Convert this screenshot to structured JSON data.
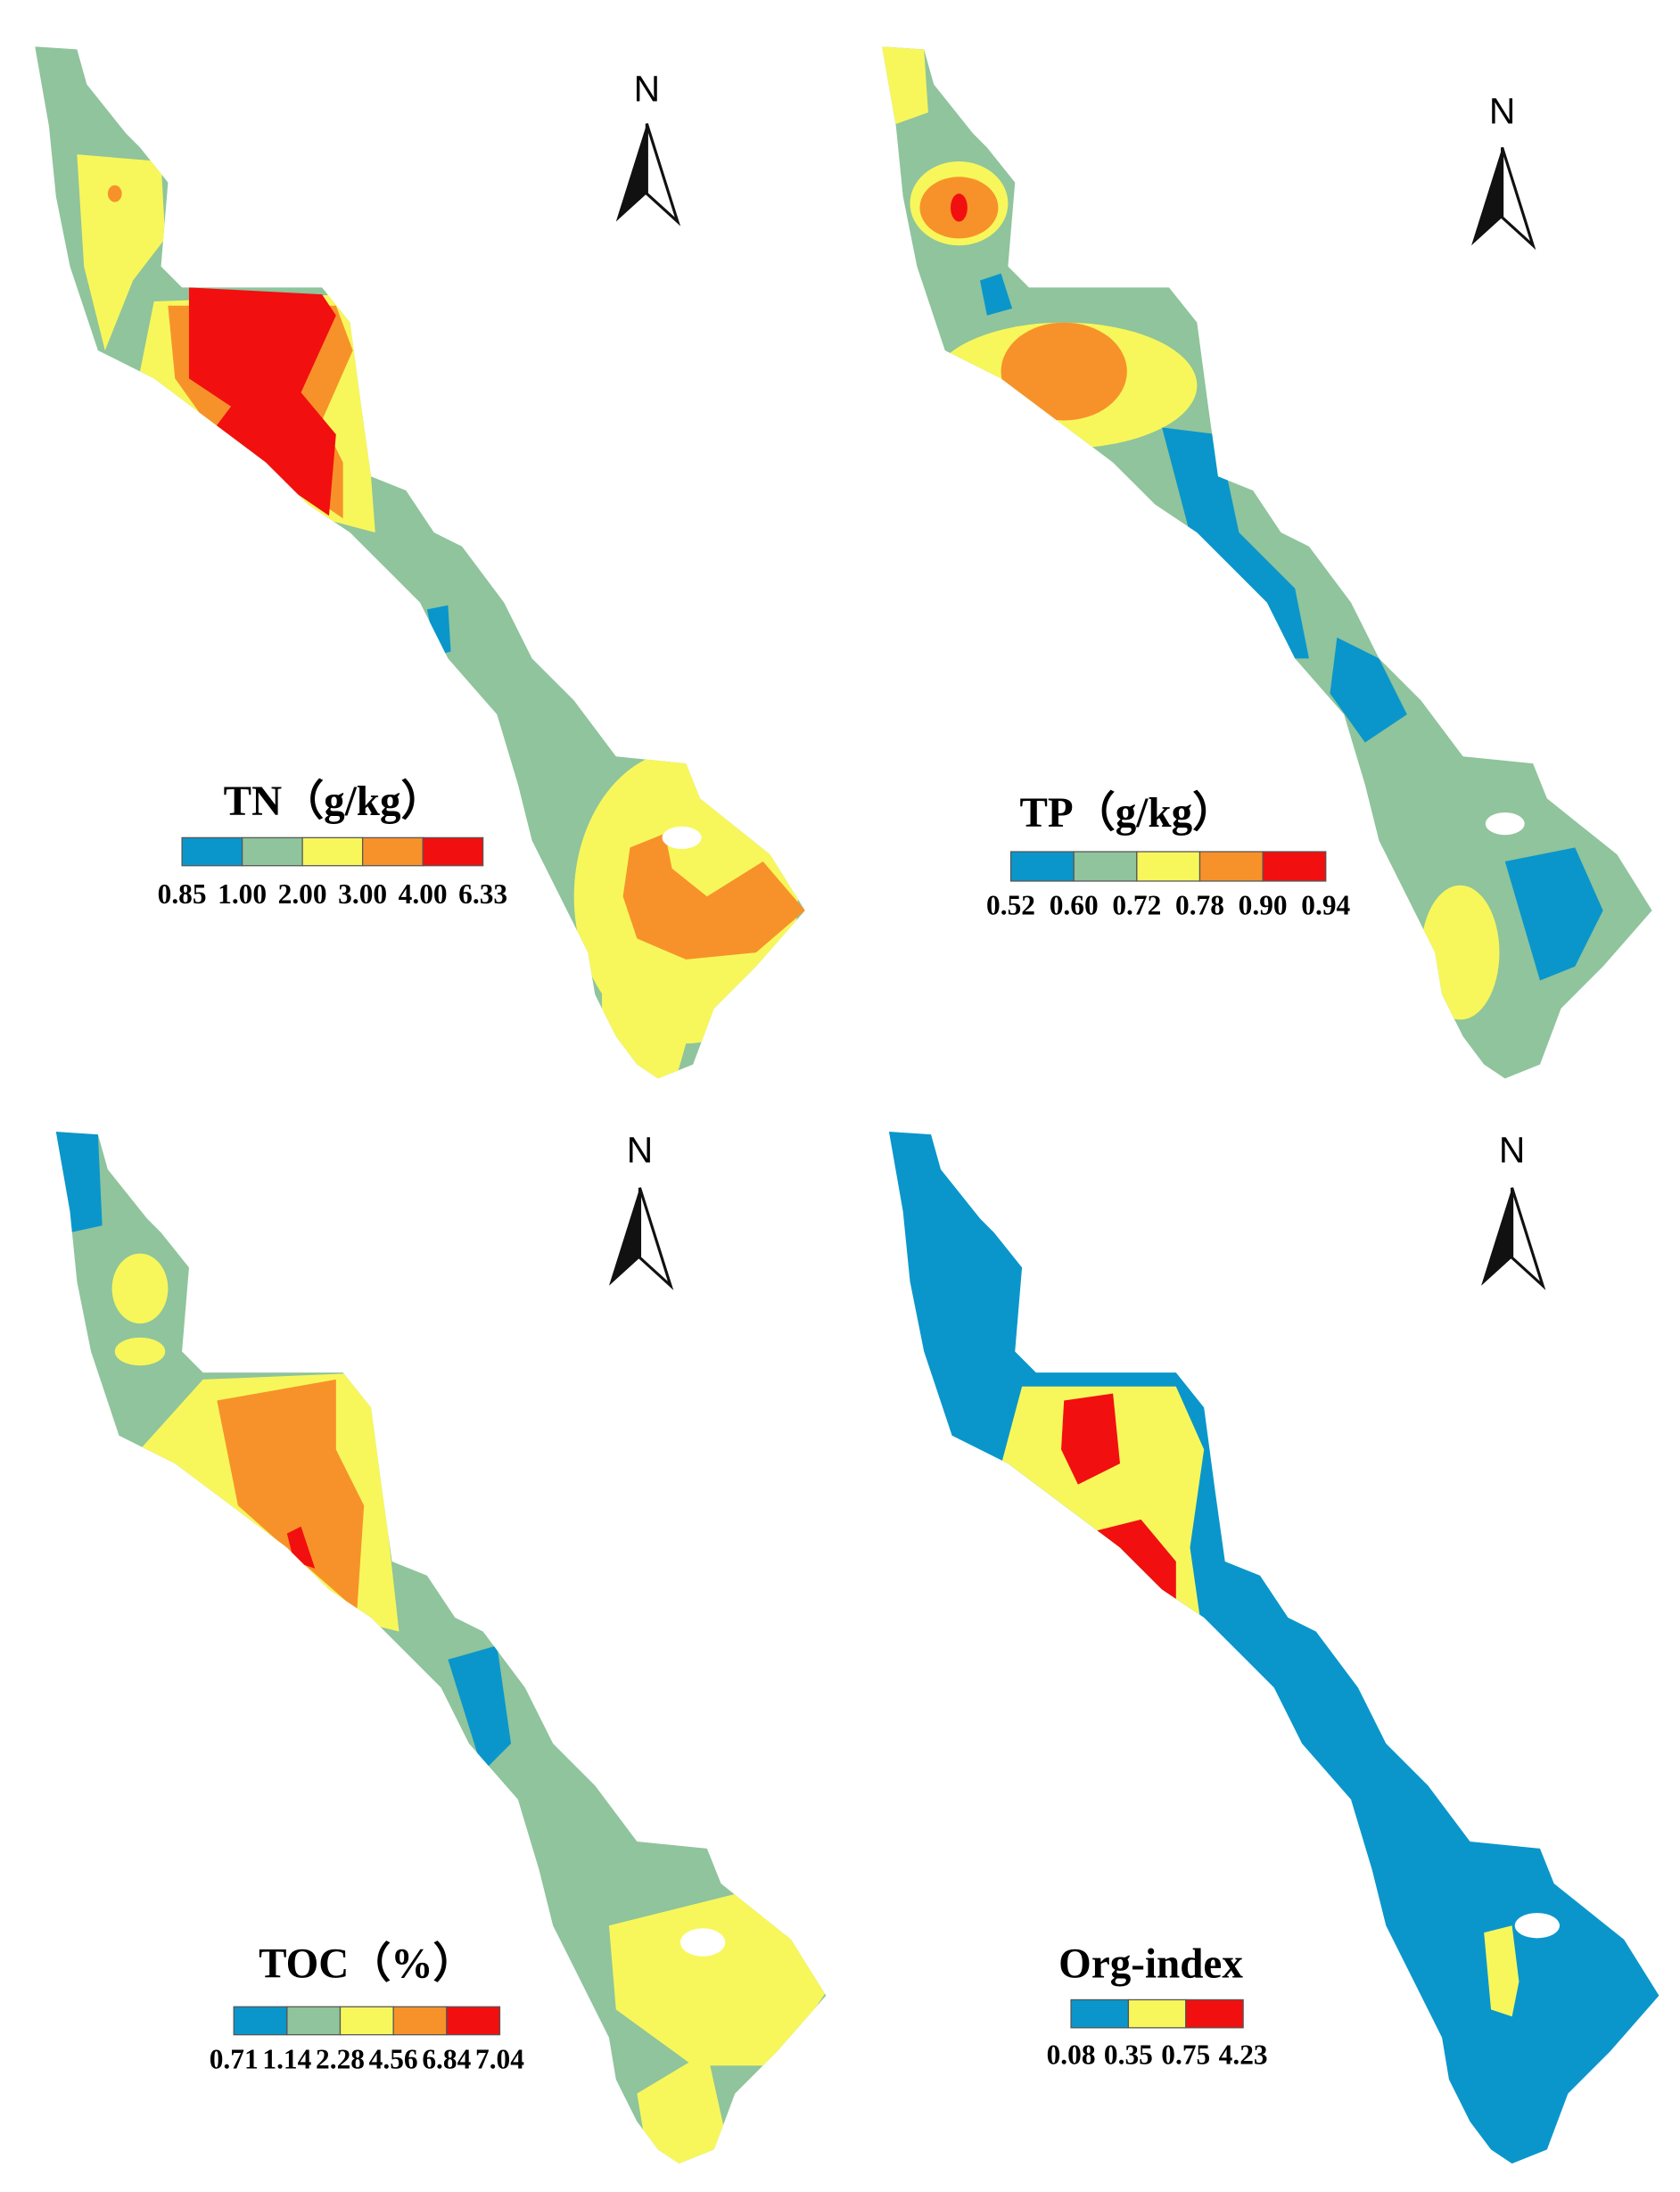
{
  "panels": [
    {
      "title": "TN（g/kg）",
      "north": "N",
      "legend": {
        "breaks": [
          "0.85",
          "1.00",
          "2.00",
          "3.00",
          "4.00",
          "6.33"
        ],
        "colors": [
          "#0a96cb",
          "#8fc49c",
          "#f7f75c",
          "#f7922a",
          "#f20f0f"
        ]
      }
    },
    {
      "title": "TP（g/kg）",
      "north": "N",
      "legend": {
        "breaks": [
          "0.52",
          "0.60",
          "0.72",
          "0.78",
          "0.90",
          "0.94"
        ],
        "colors": [
          "#0a96cb",
          "#8fc49c",
          "#f7f75c",
          "#f7922a",
          "#f20f0f"
        ]
      }
    },
    {
      "title": "TOC（%）",
      "north": "N",
      "legend": {
        "breaks": [
          "0.71",
          "1.14",
          "2.28",
          "4.56",
          "6.84",
          "7.04"
        ],
        "colors": [
          "#0a96cb",
          "#8fc49c",
          "#f7f75c",
          "#f7922a",
          "#f20f0f"
        ]
      }
    },
    {
      "title": "Org-index",
      "north": "N",
      "legend": {
        "breaks": [
          "0.08",
          "0.35",
          "0.75",
          "4.23"
        ],
        "colors": [
          "#0a96cb",
          "#f7f75c",
          "#f20f0f"
        ]
      }
    }
  ]
}
